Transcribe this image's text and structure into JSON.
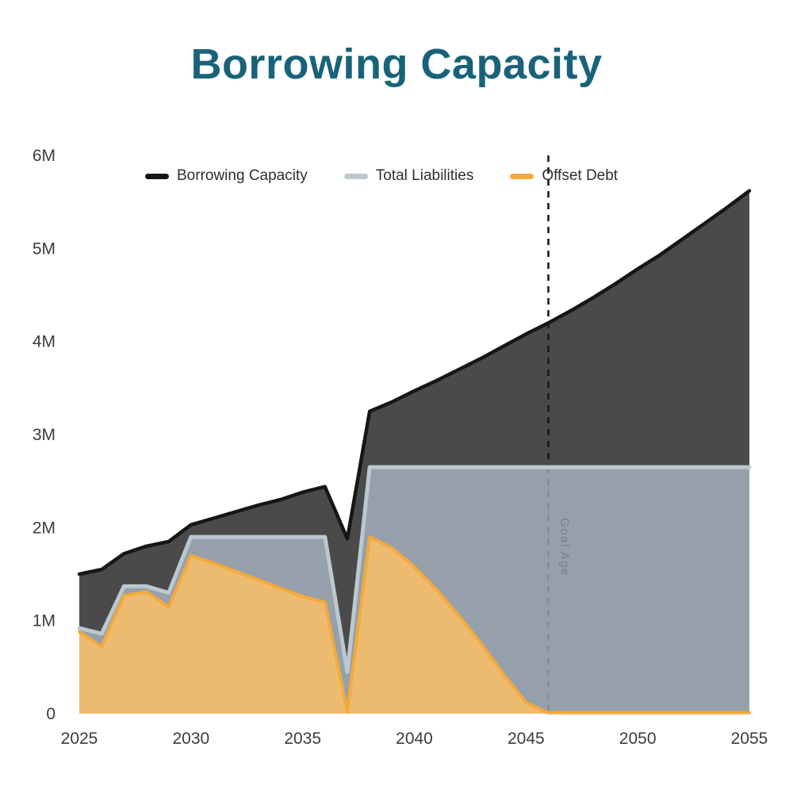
{
  "title": "Borrowing Capacity",
  "goal_age_label": "Goal Age",
  "colors": {
    "title": "#186379",
    "axis_text": "#3c3c3c",
    "legend_text": "#2f2f2f",
    "goal_line_top": "#1b1b1b",
    "goal_line_bottom": "#848d94",
    "goal_text": "#76828b",
    "background": "#ffffff"
  },
  "chart_data": {
    "type": "area",
    "title": "Borrowing Capacity",
    "xlabel": "",
    "ylabel": "",
    "units": "M",
    "ylim": [
      0,
      6
    ],
    "grid": false,
    "legend_position": "top",
    "x": [
      2025,
      2026,
      2027,
      2028,
      2029,
      2030,
      2031,
      2032,
      2033,
      2034,
      2035,
      2036,
      2037,
      2038,
      2039,
      2040,
      2041,
      2042,
      2043,
      2044,
      2045,
      2046,
      2047,
      2048,
      2049,
      2050,
      2051,
      2052,
      2053,
      2054,
      2055
    ],
    "x_tick_years": [
      2025,
      2030,
      2035,
      2040,
      2045,
      2050,
      2055
    ],
    "x_ticks": [
      "2025",
      "2030",
      "2035",
      "2040",
      "2045",
      "2050",
      "2055"
    ],
    "y_ticks": [
      {
        "value": 0,
        "label": "0"
      },
      {
        "value": 1,
        "label": "1M"
      },
      {
        "value": 2,
        "label": "2M"
      },
      {
        "value": 3,
        "label": "3M"
      },
      {
        "value": 4,
        "label": "4M"
      },
      {
        "value": 5,
        "label": "5M"
      },
      {
        "value": 6,
        "label": "6M"
      }
    ],
    "goal_age_year": 2046,
    "series": [
      {
        "name": "Borrowing Capacity",
        "line_color": "#161616",
        "fill_color": "#4a4a4a",
        "line_width": 4.5,
        "values": [
          1.5,
          1.55,
          1.72,
          1.8,
          1.85,
          2.03,
          2.1,
          2.17,
          2.24,
          2.3,
          2.38,
          2.44,
          1.88,
          3.25,
          3.35,
          3.47,
          3.58,
          3.7,
          3.82,
          3.95,
          4.08,
          4.2,
          4.33,
          4.47,
          4.62,
          4.78,
          4.93,
          5.1,
          5.27,
          5.44,
          5.62
        ]
      },
      {
        "name": "Total Liabilities",
        "line_color": "#bcc8d0",
        "fill_color": "#95a0aa",
        "line_width": 5,
        "values": [
          0.92,
          0.86,
          1.37,
          1.37,
          1.3,
          1.9,
          1.9,
          1.9,
          1.9,
          1.9,
          1.9,
          1.9,
          0.45,
          2.65,
          2.65,
          2.65,
          2.65,
          2.65,
          2.65,
          2.65,
          2.65,
          2.65,
          2.65,
          2.65,
          2.65,
          2.65,
          2.65,
          2.65,
          2.65,
          2.65,
          2.65
        ]
      },
      {
        "name": "Offset Debt",
        "line_color": "#f3a93c",
        "fill_color": "#edbb70",
        "line_width": 4,
        "values": [
          0.88,
          0.72,
          1.27,
          1.31,
          1.15,
          1.7,
          1.62,
          1.53,
          1.44,
          1.35,
          1.26,
          1.2,
          0.02,
          1.9,
          1.78,
          1.58,
          1.33,
          1.05,
          0.75,
          0.42,
          0.12,
          0.01,
          0.01,
          0.01,
          0.01,
          0.01,
          0.01,
          0.01,
          0.01,
          0.01,
          0.01
        ]
      }
    ]
  }
}
